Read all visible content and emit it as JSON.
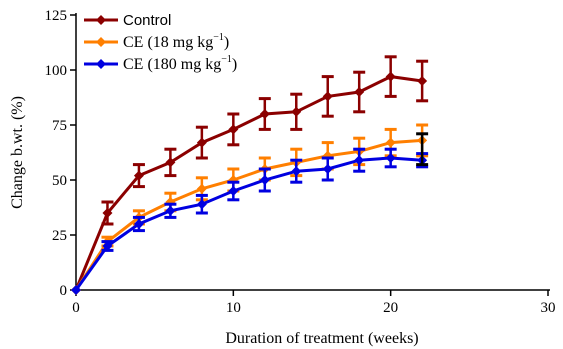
{
  "chart_data": {
    "type": "line",
    "xlabel": "Duration of treatment (weeks)",
    "ylabel": "Change b.wt. (%)",
    "xlim": [
      0,
      30
    ],
    "ylim": [
      0,
      125
    ],
    "xticks": [
      0,
      10,
      20,
      30
    ],
    "yticks": [
      0,
      25,
      50,
      75,
      100,
      125
    ],
    "grid": false,
    "legend_position": "top-left",
    "series": [
      {
        "name": "Control",
        "color": "#8B0000",
        "marker": "diamond",
        "x": [
          0,
          2,
          4,
          6,
          8,
          10,
          12,
          14,
          16,
          18,
          20,
          22
        ],
        "y": [
          0,
          35,
          52,
          58,
          67,
          73,
          80,
          81,
          88,
          90,
          97,
          95
        ],
        "err": [
          0,
          5,
          5,
          6,
          7,
          7,
          7,
          8,
          9,
          9,
          9,
          9
        ]
      },
      {
        "name": "CE (18 mg kg",
        "name_sup": "−1",
        "name_tail": ")",
        "color": "#FF7F00",
        "marker": "diamond",
        "x": [
          0,
          2,
          4,
          6,
          8,
          10,
          12,
          14,
          16,
          18,
          20,
          22
        ],
        "y": [
          0,
          22,
          33,
          40,
          46,
          50,
          55,
          58,
          61,
          63,
          67,
          68
        ],
        "err": [
          0,
          2,
          3,
          4,
          5,
          5,
          5,
          6,
          6,
          6,
          6,
          7
        ]
      },
      {
        "name": "CE (180 mg kg",
        "name_sup": "−1",
        "name_tail": ")",
        "color": "#0000E0",
        "marker": "diamond",
        "x": [
          0,
          2,
          4,
          6,
          8,
          10,
          12,
          14,
          16,
          18,
          20,
          22
        ],
        "y": [
          0,
          20,
          30,
          36,
          39,
          45,
          50,
          54,
          55,
          59,
          60,
          59
        ],
        "err": [
          0,
          2,
          3,
          3,
          4,
          4,
          5,
          5,
          5,
          5,
          4,
          3
        ]
      }
    ],
    "extra_errorbar": {
      "x": 22,
      "y": 64,
      "err": 7,
      "color": "#000000"
    }
  }
}
